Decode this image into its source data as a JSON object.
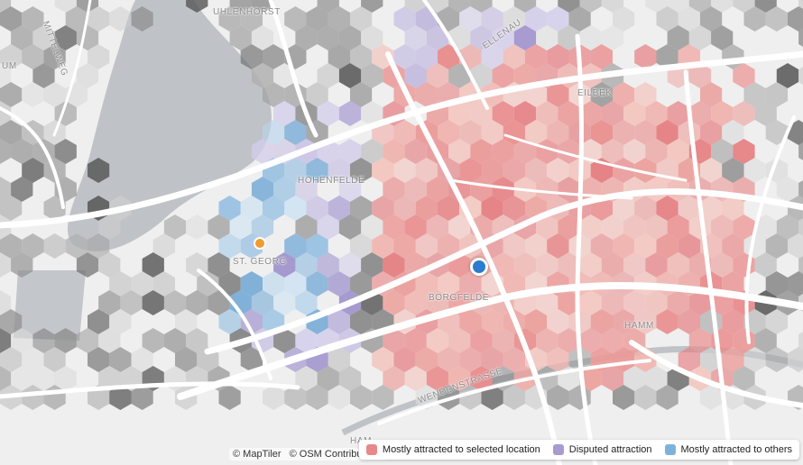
{
  "map": {
    "places": [
      {
        "id": "uhlenhorst",
        "label": "UHLENHORST"
      },
      {
        "id": "eilbek",
        "label": "EILBEK"
      },
      {
        "id": "hohenfelde",
        "label": "HOHENFELDE"
      },
      {
        "id": "st-georg",
        "label": "ST. GEORG"
      },
      {
        "id": "borgfelde",
        "label": "BORGFELDE"
      },
      {
        "id": "hamm",
        "label": "HAMM"
      },
      {
        "id": "wendenstrasse",
        "label": "WENDENSTRASSE"
      },
      {
        "id": "mittelweg",
        "label": "MITTELWEG"
      },
      {
        "id": "um",
        "label": "UM"
      },
      {
        "id": "elle",
        "label": "ELLENAU"
      },
      {
        "id": "ham",
        "label": "HAM"
      }
    ],
    "attribution": {
      "maptiler": "© MapTiler",
      "osm": "© OSM Contributors"
    },
    "selected_marker_color": "#2b7bce",
    "secondary_marker_color": "#f29a2e"
  },
  "legend": {
    "items": [
      {
        "label": "Mostly attracted to selected location",
        "color": "#e7898a"
      },
      {
        "label": "Disputed attraction",
        "color": "#a79bd0"
      },
      {
        "label": "Mostly attracted to others",
        "color": "#7fb2da"
      }
    ]
  }
}
